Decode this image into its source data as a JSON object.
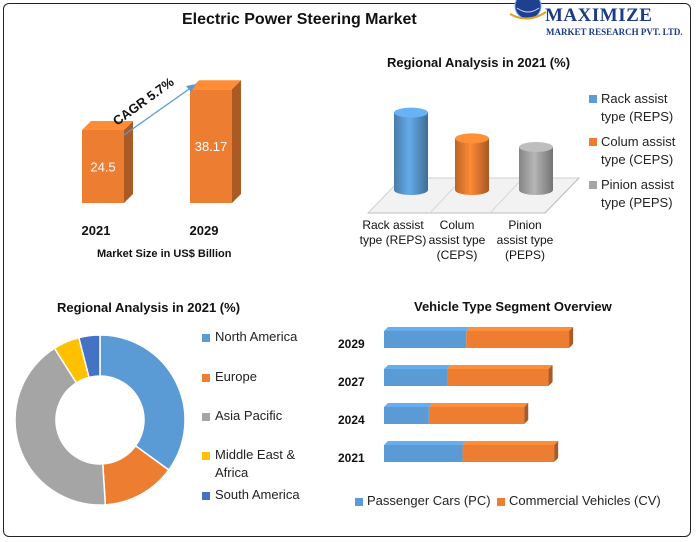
{
  "header": {
    "title": "Electric Power Steering Market",
    "logo_name": "MAXIMIZE",
    "logo_sub": "MARKET RESEARCH PVT. LTD."
  },
  "colors": {
    "orange": "#ED7D31",
    "blue": "#5B9BD5",
    "gray": "#A5A5A5",
    "yellow": "#FFC000",
    "darkblue": "#4472C4"
  },
  "chart_data": [
    {
      "id": "market-size",
      "type": "bar",
      "categories": [
        "2021",
        "2029"
      ],
      "values": [
        24.5,
        38.17
      ],
      "value_labels": [
        "24.5",
        "38.17"
      ],
      "annotation": "CAGR 5.7%",
      "caption": "Market Size in US$ Billion"
    },
    {
      "id": "regional-cylinders",
      "type": "bar",
      "title": "Regional Analysis in 2021 (%)",
      "categories": [
        "Rack assist type (REPS)",
        "Colum assist type (CEPS)",
        "Pinion assist type (PEPS)"
      ],
      "category_lines": [
        [
          "Rack assist",
          "type (REPS)"
        ],
        [
          "Colum",
          "assist type",
          "(CEPS)"
        ],
        [
          "Pinion",
          "assist type",
          "(PEPS)"
        ]
      ],
      "values": [
        45,
        30,
        25
      ],
      "colors": [
        "#5B9BD5",
        "#ED7D31",
        "#A5A5A5"
      ],
      "legend": [
        {
          "lines": [
            "Rack assist",
            "type (REPS)"
          ],
          "color": "#5B9BD5"
        },
        {
          "lines": [
            "Colum assist",
            "type (CEPS)"
          ],
          "color": "#ED7D31"
        },
        {
          "lines": [
            "Pinion assist",
            "type (PEPS)"
          ],
          "color": "#A5A5A5"
        }
      ],
      "legend_placement": "right"
    },
    {
      "id": "regional-donut",
      "type": "pie",
      "title": "Regional Analysis in 2021 (%)",
      "categories": [
        "North America",
        "Europe",
        "Asia Pacific",
        "Middle East & Africa",
        "South America"
      ],
      "values": [
        35,
        14,
        42,
        5,
        4
      ],
      "colors": [
        "#5B9BD5",
        "#ED7D31",
        "#A5A5A5",
        "#FFC000",
        "#4472C4"
      ],
      "legend": [
        {
          "lines": [
            "North America"
          ],
          "color": "#5B9BD5"
        },
        {
          "lines": [
            "Europe"
          ],
          "color": "#ED7D31"
        },
        {
          "lines": [
            "Asia Pacific"
          ],
          "color": "#A5A5A5"
        },
        {
          "lines": [
            "Middle East &",
            "Africa"
          ],
          "color": "#FFC000"
        },
        {
          "lines": [
            "South America"
          ],
          "color": "#4472C4"
        }
      ],
      "legend_placement": "right"
    },
    {
      "id": "vehicle-type",
      "type": "bar",
      "orientation": "horizontal",
      "stacked": true,
      "title": "Vehicle Type  Segment Overview",
      "categories": [
        "2029",
        "2027",
        "2024",
        "2021"
      ],
      "series": [
        {
          "name": "Passenger Cars (PC)",
          "values": [
            44,
            34,
            24,
            42
          ],
          "color": "#5B9BD5"
        },
        {
          "name": "Commercial Vehicles (CV)",
          "values": [
            55,
            54,
            51,
            49
          ],
          "color": "#ED7D31"
        }
      ],
      "legend_placement": "bottom"
    }
  ]
}
